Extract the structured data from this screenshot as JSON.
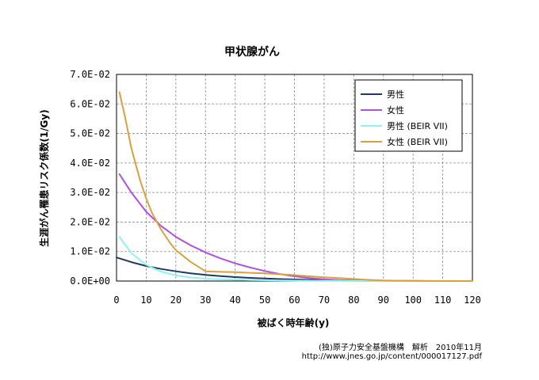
{
  "chart_data": {
    "type": "line",
    "title": "甲状腺がん",
    "xlabel": "被ばく時年齢(y)",
    "ylabel": "生涯がん罹患リスク係数(1/Gy)",
    "xlim": [
      0,
      120
    ],
    "ylim": [
      0,
      0.07
    ],
    "x_ticks": [
      "0",
      "10",
      "20",
      "30",
      "40",
      "50",
      "60",
      "70",
      "80",
      "90",
      "100",
      "110",
      "120"
    ],
    "y_ticks": [
      "0.0E+00",
      "1.0E-02",
      "2.0E-02",
      "3.0E-02",
      "4.0E-02",
      "5.0E-02",
      "6.0E-02",
      "7.0E-02"
    ],
    "grid": true,
    "legend_position": "top-right",
    "series": [
      {
        "name": "男性",
        "color": "#1f3864",
        "x": [
          0,
          5,
          10,
          15,
          20,
          25,
          30,
          35,
          40,
          45,
          50,
          55,
          60,
          65,
          70,
          75,
          80,
          85,
          90,
          95,
          100,
          105,
          110,
          115,
          120
        ],
        "y": [
          0.008,
          0.0064,
          0.0051,
          0.0041,
          0.0033,
          0.0026,
          0.0021,
          0.0017,
          0.00135,
          0.00108,
          0.00086,
          0.00068,
          0.00053,
          0.00041,
          0.0003,
          0.00021,
          0.00014,
          9e-05,
          5e-05,
          3e-05,
          2e-05,
          1e-05,
          1e-05,
          5e-06,
          5e-06
        ]
      },
      {
        "name": "女性",
        "color": "#b04fe0",
        "x": [
          1,
          5,
          10,
          15,
          20,
          25,
          30,
          35,
          40,
          45,
          50,
          55,
          60,
          65,
          70,
          75,
          80,
          85,
          90,
          95,
          100,
          105,
          110,
          115,
          120
        ],
        "y": [
          0.0362,
          0.03,
          0.0235,
          0.0187,
          0.015,
          0.0121,
          0.0097,
          0.0077,
          0.006,
          0.0046,
          0.0034,
          0.0024,
          0.0016,
          0.001,
          0.0006,
          0.00035,
          0.0002,
          0.0001,
          5e-05,
          3e-05,
          2e-05,
          1e-05,
          1e-05,
          5e-06,
          5e-06
        ]
      },
      {
        "name": "男性 (BEIR VII)",
        "color": "#8ef2f2",
        "x": [
          1,
          5,
          10,
          15,
          20,
          25,
          30,
          35,
          40,
          45,
          50,
          55,
          60,
          65,
          70,
          75,
          80,
          85,
          90,
          95,
          100,
          105,
          110,
          115,
          120
        ],
        "y": [
          0.015,
          0.0095,
          0.0055,
          0.0032,
          0.0019,
          0.0012,
          0.0008,
          0.0006,
          0.00045,
          0.00035,
          0.00028,
          0.00022,
          0.00017,
          0.00012,
          8e-05,
          5e-05,
          3e-05,
          2e-05,
          1e-05,
          1e-05,
          5e-06,
          5e-06,
          5e-06,
          5e-06,
          5e-06
        ]
      },
      {
        "name": "女性 (BEIR VII)",
        "color": "#d9a040",
        "x": [
          1,
          3,
          5,
          8,
          10,
          12,
          15,
          18,
          20,
          25,
          30,
          35,
          40,
          45,
          50,
          55,
          60,
          65,
          70,
          75,
          80,
          85,
          90,
          95,
          100,
          105,
          110,
          115,
          120
        ],
        "y": [
          0.064,
          0.055,
          0.045,
          0.034,
          0.028,
          0.023,
          0.0175,
          0.013,
          0.0105,
          0.0065,
          0.0033,
          0.0031,
          0.003,
          0.0028,
          0.0026,
          0.0023,
          0.002,
          0.0016,
          0.0013,
          0.001,
          0.0007,
          0.0004,
          0.0002,
          0.0001,
          5e-05,
          3e-05,
          2e-05,
          1e-05,
          1e-05
        ]
      }
    ]
  },
  "source": {
    "line1": "(独)原子力安全基盤機構　解析　2010年11月",
    "line2": "http://www.jnes.go.jp/content/000017127.pdf"
  }
}
